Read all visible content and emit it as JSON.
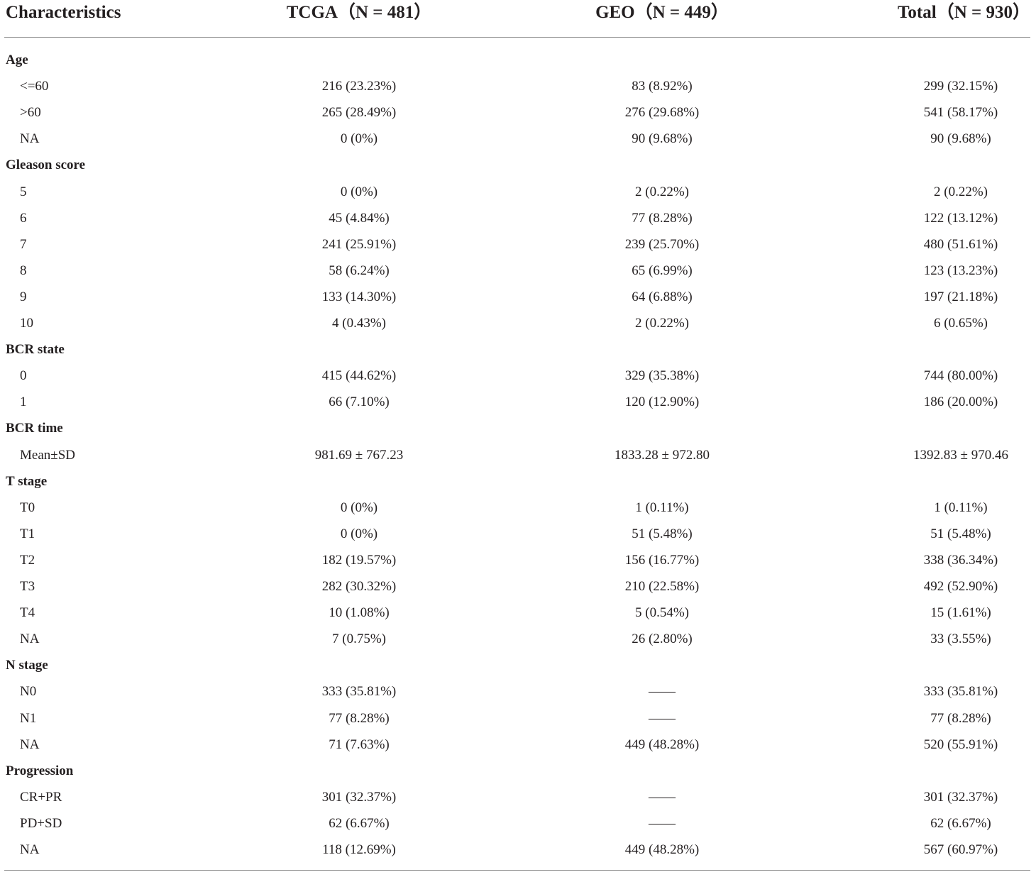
{
  "table": {
    "headers": [
      "Characteristics",
      "TCGA（N = 481）",
      "GEO（N = 449）",
      "Total（N = 930）"
    ],
    "rows": [
      {
        "type": "group",
        "label": "Age"
      },
      {
        "type": "item",
        "label": "<=60",
        "values": [
          "216 (23.23%)",
          "83 (8.92%)",
          "299 (32.15%)"
        ]
      },
      {
        "type": "item",
        "label": ">60",
        "values": [
          "265 (28.49%)",
          "276 (29.68%)",
          "541 (58.17%)"
        ]
      },
      {
        "type": "item",
        "label": "NA",
        "values": [
          "0 (0%)",
          "90 (9.68%)",
          "90 (9.68%)"
        ]
      },
      {
        "type": "group",
        "label": "Gleason score"
      },
      {
        "type": "item",
        "label": "5",
        "values": [
          "0 (0%)",
          "2 (0.22%)",
          "2 (0.22%)"
        ]
      },
      {
        "type": "item",
        "label": "6",
        "values": [
          "45 (4.84%)",
          "77 (8.28%)",
          "122 (13.12%)"
        ]
      },
      {
        "type": "item",
        "label": "7",
        "values": [
          "241 (25.91%)",
          "239 (25.70%)",
          "480 (51.61%)"
        ]
      },
      {
        "type": "item",
        "label": "8",
        "values": [
          "58 (6.24%)",
          "65 (6.99%)",
          "123 (13.23%)"
        ]
      },
      {
        "type": "item",
        "label": "9",
        "values": [
          "133 (14.30%)",
          "64 (6.88%)",
          "197 (21.18%)"
        ]
      },
      {
        "type": "item",
        "label": "10",
        "values": [
          "4 (0.43%)",
          "2 (0.22%)",
          "6 (0.65%)"
        ]
      },
      {
        "type": "group",
        "label": "BCR state"
      },
      {
        "type": "item",
        "label": "0",
        "values": [
          "415 (44.62%)",
          "329 (35.38%)",
          "744 (80.00%)"
        ]
      },
      {
        "type": "item",
        "label": "1",
        "values": [
          "66 (7.10%)",
          "120 (12.90%)",
          "186 (20.00%)"
        ]
      },
      {
        "type": "group",
        "label": "BCR time"
      },
      {
        "type": "item",
        "label": "Mean±SD",
        "values": [
          "981.69 ± 767.23",
          "1833.28 ± 972.80",
          "1392.83 ± 970.46"
        ]
      },
      {
        "type": "group",
        "label": "T stage"
      },
      {
        "type": "item",
        "label": "T0",
        "values": [
          "0 (0%)",
          "1 (0.11%)",
          "1 (0.11%)"
        ]
      },
      {
        "type": "item",
        "label": "T1",
        "values": [
          "0 (0%)",
          "51 (5.48%)",
          "51 (5.48%)"
        ]
      },
      {
        "type": "item",
        "label": "T2",
        "values": [
          "182 (19.57%)",
          "156 (16.77%)",
          "338 (36.34%)"
        ]
      },
      {
        "type": "item",
        "label": "T3",
        "values": [
          "282 (30.32%)",
          "210 (22.58%)",
          "492 (52.90%)"
        ]
      },
      {
        "type": "item",
        "label": "T4",
        "values": [
          "10 (1.08%)",
          "5 (0.54%)",
          "15 (1.61%)"
        ]
      },
      {
        "type": "item",
        "label": "NA",
        "values": [
          "7 (0.75%)",
          "26 (2.80%)",
          "33 (3.55%)"
        ]
      },
      {
        "type": "group",
        "label": "N stage"
      },
      {
        "type": "item",
        "label": "N0",
        "values": [
          "333 (35.81%)",
          "——",
          "333 (35.81%)"
        ]
      },
      {
        "type": "item",
        "label": "N1",
        "values": [
          "77 (8.28%)",
          "——",
          "77 (8.28%)"
        ]
      },
      {
        "type": "item",
        "label": "NA",
        "values": [
          "71 (7.63%)",
          "449 (48.28%)",
          "520 (55.91%)"
        ]
      },
      {
        "type": "group",
        "label": "Progression"
      },
      {
        "type": "item",
        "label": "CR+PR",
        "values": [
          "301 (32.37%)",
          "——",
          "301 (32.37%)"
        ]
      },
      {
        "type": "item",
        "label": "PD+SD",
        "values": [
          "62 (6.67%)",
          "——",
          "62 (6.67%)"
        ]
      },
      {
        "type": "item",
        "label": "NA",
        "values": [
          "118 (12.69%)",
          "449 (48.28%)",
          "567 (60.97%)"
        ]
      }
    ]
  }
}
